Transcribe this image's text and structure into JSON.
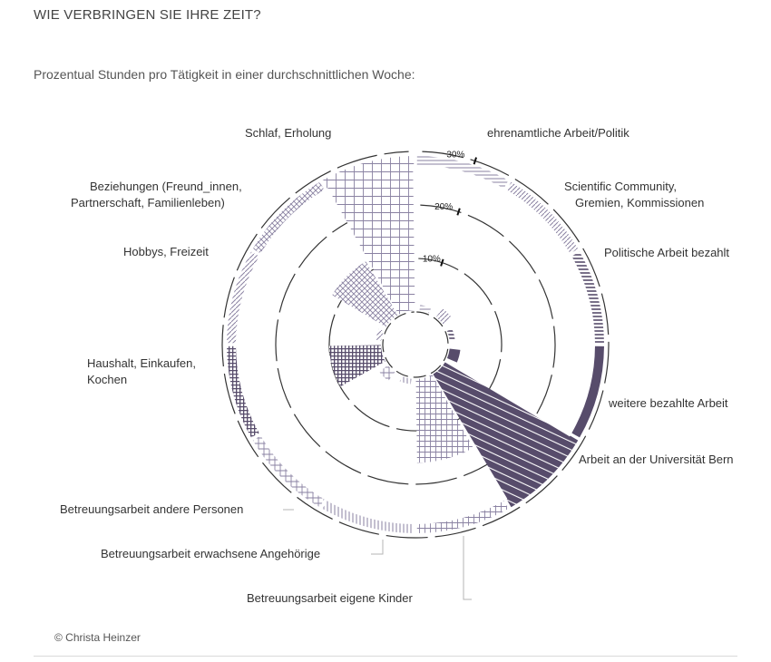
{
  "title": "WIE VERBRINGEN SIE IHRE ZEIT?",
  "subtitle": "Prozentual Stunden pro Tätigkeit in einer durchschnittlichen Woche:",
  "copyright": "© Christa Heinzer",
  "colors": {
    "dark": "#574c6b",
    "light": "#8a82a2",
    "ring": "#333333"
  },
  "chart_data": {
    "type": "polar-area",
    "unit": "%",
    "ticks": [
      {
        "value": 10,
        "label": "10%"
      },
      {
        "value": 20,
        "label": "20%"
      },
      {
        "value": 30,
        "label": "30%"
      }
    ],
    "rlim": [
      0,
      30
    ],
    "categories": [
      {
        "label": "ehrenamtliche Arbeit/Politik",
        "value": 0.5,
        "pattern": "hlines-light"
      },
      {
        "label": "Scientific Community, Gremien, Kommissionen",
        "value": 1,
        "pattern": "diag-light"
      },
      {
        "label": "Politische Arbeit bezahlt",
        "value": 0.5,
        "pattern": "hlines-dark"
      },
      {
        "label": "weitere bezahlte Arbeit",
        "value": 1,
        "pattern": "solid-dark"
      },
      {
        "label": "Arbeit an der Universität Bern",
        "value": 28,
        "pattern": "solid-stripe"
      },
      {
        "label": "Betreuungsarbeit eigene Kinder",
        "value": 16,
        "pattern": "grid-light"
      },
      {
        "label": "Betreuungsarbeit erwachsene Angehörige",
        "value": 0.5,
        "pattern": "vlines-light"
      },
      {
        "label": "Betreuungsarbeit andere Personen",
        "value": 1,
        "pattern": "cross-light"
      },
      {
        "label": "Haushalt, Einkaufen, Kochen",
        "value": 10,
        "pattern": "grid-dark"
      },
      {
        "label": "Hobbys, Freizeit",
        "value": 0.5,
        "pattern": "diag-light"
      },
      {
        "label": "Beziehungen (Freund_innen, Partnerschaft, Familienleben)",
        "value": 12,
        "pattern": "cross-diag"
      },
      {
        "label": "Schlaf, Erholung",
        "value": 28,
        "pattern": "grid-wide"
      }
    ]
  },
  "labels": {
    "ehrenamt": "ehrenamtliche Arbeit/Politik",
    "sci1": "Scientific Community,",
    "sci2": "Gremien, Kommissionen",
    "polit": "Politische Arbeit bezahlt",
    "weitere": "weitere bezahlte Arbeit",
    "uni": "Arbeit an der Universität Bern",
    "kinder": "Betreuungsarbeit eigene Kinder",
    "erwachsene": "Betreuungsarbeit erwachsene Angehörige",
    "andere": "Betreuungsarbeit andere Personen",
    "haushalt1": "Haushalt, Einkaufen,",
    "haushalt2": "Kochen",
    "hobbys": "Hobbys, Freizeit",
    "bez1": "Beziehungen (Freund_innen,",
    "bez2": "Partnerschaft, Familienleben)",
    "schlaf": "Schlaf, Erholung"
  }
}
